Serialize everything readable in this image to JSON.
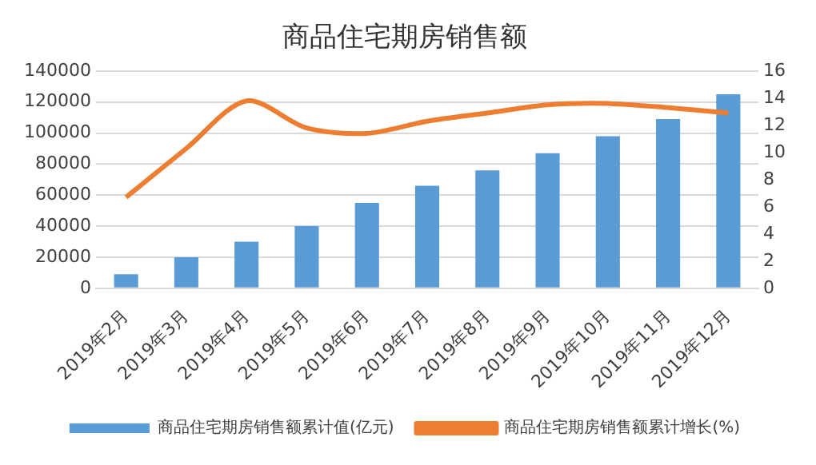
{
  "chart_data": {
    "type": "bar",
    "title": "商品住宅期房销售额",
    "categories": [
      "2019年2月",
      "2019年3月",
      "2019年4月",
      "2019年5月",
      "2019年6月",
      "2019年7月",
      "2019年8月",
      "2019年9月",
      "2019年10月",
      "2019年11月",
      "2019年12月"
    ],
    "series": [
      {
        "name": "商品住宅期房销售额累计值(亿元)",
        "color": "#5b9bd5",
        "values": [
          9000,
          20000,
          30000,
          40000,
          55000,
          66000,
          76000,
          87000,
          98000,
          109000,
          125000
        ]
      },
      {
        "name": "商品住宅期房销售额累计增长(%)",
        "type": "line",
        "axis": "y2",
        "color": "#ed7d31",
        "values": [
          6.7,
          10.3,
          13.8,
          11.8,
          11.4,
          12.3,
          12.9,
          13.5,
          13.6,
          13.3,
          12.9
        ]
      }
    ],
    "ylim": [
      0,
      140000
    ],
    "yticks": [
      0,
      20000,
      40000,
      60000,
      80000,
      100000,
      120000,
      140000
    ],
    "y2lim": [
      0,
      16
    ],
    "y2ticks": [
      0,
      2,
      4,
      6,
      8,
      10,
      12,
      14,
      16
    ],
    "grid": "y",
    "legend": "bottom",
    "marker": "none",
    "line_style": "solid"
  }
}
